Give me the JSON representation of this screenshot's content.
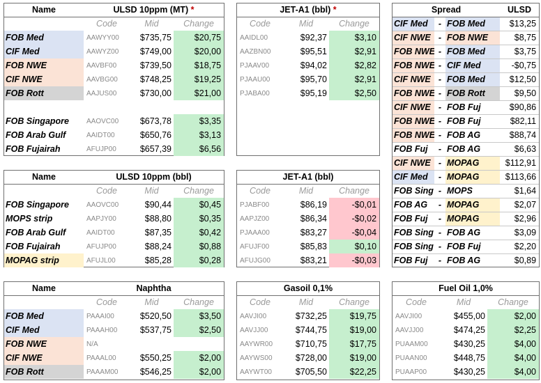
{
  "ulsd_mt": {
    "title": "ULSD 10ppm (MT)",
    "title_mark": "*",
    "name_header": "Name",
    "col_code": "Code",
    "col_mid": "Mid",
    "col_change": "Change",
    "rows": [
      {
        "name": "FOB Med",
        "code": "AAWYY00",
        "mid": "$735,75",
        "change": "$20,75"
      },
      {
        "name": "CIF Med",
        "code": "AAWYZ00",
        "mid": "$749,00",
        "change": "$20,00"
      },
      {
        "name": "FOB NWE",
        "code": "AAVBF00",
        "mid": "$739,50",
        "change": "$18,75"
      },
      {
        "name": "CIF NWE",
        "code": "AAVBG00",
        "mid": "$748,25",
        "change": "$19,25"
      },
      {
        "name": "FOB Rott",
        "code": "AAJUS00",
        "mid": "$730,00",
        "change": "$21,00"
      },
      {
        "name": "",
        "code": "",
        "mid": "",
        "change": ""
      },
      {
        "name": "FOB Singapore",
        "code": "AAOVC00",
        "mid": "$673,78",
        "change": "$3,35"
      },
      {
        "name": "FOB Arab Gulf",
        "code": "AAIDT00",
        "mid": "$650,76",
        "change": "$3,13"
      },
      {
        "name": "FOB Fujairah",
        "code": "AFUJP00",
        "mid": "$657,39",
        "change": "$6,56"
      }
    ]
  },
  "jet_bbl_1": {
    "title": "JET-A1 (bbl)",
    "title_mark": "*",
    "col_code": "Code",
    "col_mid": "Mid",
    "col_change": "Change",
    "rows": [
      {
        "code": "AAIDL00",
        "mid": "$92,37",
        "change": "$3,10"
      },
      {
        "code": "AAZBN00",
        "mid": "$95,51",
        "change": "$2,91"
      },
      {
        "code": "PJAAV00",
        "mid": "$94,02",
        "change": "$2,82"
      },
      {
        "code": "PJAAU00",
        "mid": "$95,70",
        "change": "$2,91"
      },
      {
        "code": "PJABA00",
        "mid": "$95,19",
        "change": "$2,50"
      }
    ]
  },
  "spread": {
    "header": "Spread",
    "unit_header": "ULSD",
    "rows": [
      {
        "a": "CIF Med",
        "b": "FOB Med",
        "value": "$13,25"
      },
      {
        "a": "CIF NWE",
        "b": "FOB NWE",
        "value": "$8,75"
      },
      {
        "a": "FOB NWE",
        "b": "FOB Med",
        "value": "$3,75"
      },
      {
        "a": "FOB NWE",
        "b": "CIF Med",
        "value": "-$0,75"
      },
      {
        "a": "CIF NWE",
        "b": "FOB Med",
        "value": "$12,50"
      },
      {
        "a": "FOB NWE",
        "b": "FOB Rott",
        "value": "$9,50"
      },
      {
        "a": "CIF NWE",
        "b": "FOB Fuj",
        "value": "$90,86"
      },
      {
        "a": "FOB NWE",
        "b": "FOB Fuj",
        "value": "$82,11"
      },
      {
        "a": "FOB NWE",
        "b": "FOB AG",
        "value": "$88,74"
      },
      {
        "a": "FOB Fuj",
        "b": "FOB AG",
        "value": "$6,63"
      },
      {
        "a": "CIF NWE",
        "b": "MOPAG",
        "value": "$112,91"
      },
      {
        "a": "CIF Med",
        "b": "MOPAG",
        "value": "$113,66"
      },
      {
        "a": "FOB Sing",
        "b": "MOPS",
        "value": "$1,64"
      },
      {
        "a": "FOB AG",
        "b": "MOPAG",
        "value": "$2,07"
      },
      {
        "a": "FOB Fuj",
        "b": "MOPAG",
        "value": "$2,96"
      },
      {
        "a": "FOB Sing",
        "b": "FOB AG",
        "value": "$3,09"
      },
      {
        "a": "FOB Sing",
        "b": "FOB Fuj",
        "value": "$2,20"
      },
      {
        "a": "FOB Fuj",
        "b": "FOB AG",
        "value": "$0,89"
      }
    ],
    "dash": "-"
  },
  "ulsd_bbl": {
    "title": "ULSD 10ppm (bbl)",
    "name_header": "Name",
    "col_code": "Code",
    "col_mid": "Mid",
    "col_change": "Change",
    "rows": [
      {
        "name": "FOB Singapore",
        "code": "AAOVC00",
        "mid": "$90,44",
        "change": "$0,45"
      },
      {
        "name": "MOPS strip",
        "code": "AAPJY00",
        "mid": "$88,80",
        "change": "$0,35"
      },
      {
        "name": "FOB Arab Gulf",
        "code": "AAIDT00",
        "mid": "$87,35",
        "change": "$0,42"
      },
      {
        "name": "FOB Fujairah",
        "code": "AFUJP00",
        "mid": "$88,24",
        "change": "$0,88"
      },
      {
        "name": "MOPAG strip",
        "code": "AFUJL00",
        "mid": "$85,28",
        "change": "$0,28"
      }
    ]
  },
  "jet_bbl_2": {
    "title": "JET-A1 (bbl)",
    "col_code": "Code",
    "col_mid": "Mid",
    "col_change": "Change",
    "rows": [
      {
        "code": "PJABF00",
        "mid": "$86,19",
        "change": "-$0,01"
      },
      {
        "code": "AAPJZ00",
        "mid": "$86,34",
        "change": "-$0,02"
      },
      {
        "code": "PJAAA00",
        "mid": "$83,27",
        "change": "-$0,04"
      },
      {
        "code": "AFUJF00",
        "mid": "$85,83",
        "change": "$0,10"
      },
      {
        "code": "AFUJG00",
        "mid": "$83,21",
        "change": "-$0,03"
      }
    ]
  },
  "naphtha": {
    "title": "Naphtha",
    "name_header": "Name",
    "col_code": "Code",
    "col_mid": "Mid",
    "col_change": "Change",
    "rows": [
      {
        "name": "FOB Med",
        "code": "PAAAI00",
        "mid": "$520,50",
        "change": "$3,50"
      },
      {
        "name": "CIF Med",
        "code": "PAAAH00",
        "mid": "$537,75",
        "change": "$2,50"
      },
      {
        "name": "FOB NWE",
        "code": "N/A",
        "mid": "",
        "change": ""
      },
      {
        "name": "CIF NWE",
        "code": "PAAAL00",
        "mid": "$550,25",
        "change": "$2,00"
      },
      {
        "name": "FOB Rott",
        "code": "PAAAM00",
        "mid": "$546,25",
        "change": "$2,00"
      }
    ]
  },
  "gasoil": {
    "title": "Gasoil 0,1%",
    "col_code": "Code",
    "col_mid": "Mid",
    "col_change": "Change",
    "rows": [
      {
        "code": "AAVJI00",
        "mid": "$732,25",
        "change": "$19,75"
      },
      {
        "code": "AAVJJ00",
        "mid": "$744,75",
        "change": "$19,00"
      },
      {
        "code": "AAYWR00",
        "mid": "$710,75",
        "change": "$17,75"
      },
      {
        "code": "AAYWS00",
        "mid": "$728,00",
        "change": "$19,00"
      },
      {
        "code": "AAYWT00",
        "mid": "$705,50",
        "change": "$22,25"
      }
    ]
  },
  "fueloil": {
    "title": "Fuel Oil 1,0%",
    "col_code": "Code",
    "col_mid": "Mid",
    "col_change": "Change",
    "rows": [
      {
        "code": "AAVJI00",
        "mid": "$455,00",
        "change": "$2,00"
      },
      {
        "code": "AAVJJ00",
        "mid": "$474,25",
        "change": "$2,25"
      },
      {
        "code": "PUAAM00",
        "mid": "$430,25",
        "change": "$4,00"
      },
      {
        "code": "PUAAN00",
        "mid": "$448,75",
        "change": "$4,00"
      },
      {
        "code": "PUAAP00",
        "mid": "$430,25",
        "change": "$4,00"
      }
    ]
  }
}
